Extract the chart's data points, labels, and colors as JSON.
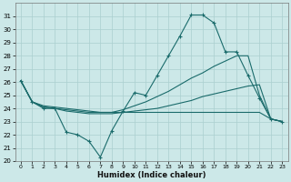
{
  "xlabel": "Humidex (Indice chaleur)",
  "bg_color": "#cce8e8",
  "grid_color": "#aacfcf",
  "line_color": "#1a6b6b",
  "xlim": [
    -0.5,
    23.5
  ],
  "ylim": [
    20,
    32
  ],
  "yticks": [
    20,
    21,
    22,
    23,
    24,
    25,
    26,
    27,
    28,
    29,
    30,
    31
  ],
  "xticks": [
    0,
    1,
    2,
    3,
    4,
    5,
    6,
    7,
    8,
    9,
    10,
    11,
    12,
    13,
    14,
    15,
    16,
    17,
    18,
    19,
    20,
    21,
    22,
    23
  ],
  "series": [
    {
      "x": [
        0,
        1,
        2,
        3,
        4,
        5,
        6,
        7,
        8,
        9,
        10,
        11,
        12,
        13,
        14,
        15,
        16,
        17,
        18,
        19,
        20,
        21,
        22,
        23
      ],
      "y": [
        26.1,
        24.5,
        24.0,
        24.0,
        22.2,
        22.0,
        21.5,
        20.3,
        22.3,
        23.8,
        25.2,
        25.0,
        26.5,
        28.0,
        29.5,
        31.1,
        31.1,
        30.5,
        28.3,
        28.3,
        26.5,
        24.8,
        23.2,
        23.0
      ],
      "marker": true
    },
    {
      "x": [
        0,
        1,
        2,
        3,
        4,
        5,
        6,
        7,
        8,
        9,
        10,
        11,
        12,
        13,
        14,
        15,
        16,
        17,
        18,
        19,
        20,
        21,
        22,
        23
      ],
      "y": [
        26.1,
        24.5,
        24.1,
        24.0,
        23.8,
        23.7,
        23.6,
        23.6,
        23.6,
        23.7,
        23.8,
        23.9,
        24.0,
        24.2,
        24.4,
        24.6,
        24.9,
        25.1,
        25.3,
        25.5,
        25.7,
        25.8,
        23.2,
        23.0
      ],
      "marker": false
    },
    {
      "x": [
        0,
        1,
        2,
        3,
        4,
        5,
        6,
        7,
        8,
        9,
        10,
        11,
        12,
        13,
        14,
        15,
        16,
        17,
        18,
        19,
        20,
        21,
        22,
        23
      ],
      "y": [
        26.1,
        24.5,
        24.2,
        24.1,
        24.0,
        23.9,
        23.8,
        23.7,
        23.7,
        23.9,
        24.2,
        24.5,
        24.9,
        25.3,
        25.8,
        26.3,
        26.7,
        27.2,
        27.6,
        28.0,
        28.0,
        25.0,
        23.2,
        23.0
      ],
      "marker": false
    },
    {
      "x": [
        0,
        1,
        2,
        3,
        4,
        5,
        6,
        7,
        8,
        9,
        10,
        11,
        12,
        13,
        14,
        15,
        16,
        17,
        18,
        19,
        20,
        21,
        22,
        23
      ],
      "y": [
        26.1,
        24.5,
        24.1,
        24.0,
        23.9,
        23.8,
        23.7,
        23.7,
        23.7,
        23.7,
        23.7,
        23.7,
        23.7,
        23.7,
        23.7,
        23.7,
        23.7,
        23.7,
        23.7,
        23.7,
        23.7,
        23.7,
        23.2,
        23.0
      ],
      "marker": false
    }
  ]
}
